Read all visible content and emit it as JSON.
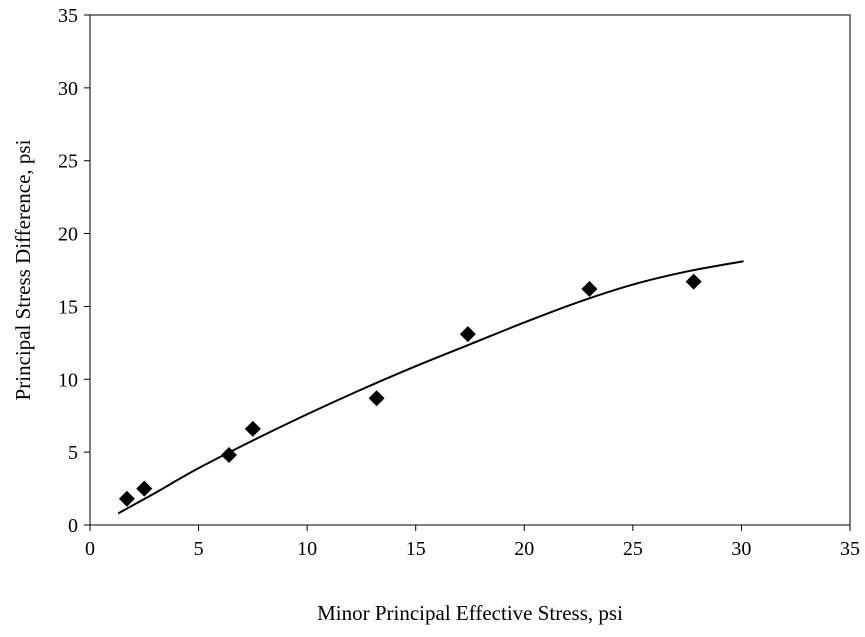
{
  "chart_data": {
    "type": "scatter",
    "title": "",
    "xlabel": "Minor Principal Effective Stress, psi",
    "ylabel": "Principal Stress Difference, psi",
    "xlim": [
      0,
      35
    ],
    "ylim": [
      0,
      35
    ],
    "x_ticks": [
      0,
      5,
      10,
      15,
      20,
      25,
      30,
      35
    ],
    "y_ticks": [
      0,
      5,
      10,
      15,
      20,
      25,
      30,
      35
    ],
    "grid": false,
    "legend": "none",
    "colors": {
      "marker": "#000000",
      "curve": "#000000",
      "axes": "#000000"
    },
    "series": [
      {
        "marker": "diamond",
        "points": [
          {
            "x": 1.7,
            "y": 1.8
          },
          {
            "x": 2.5,
            "y": 2.5
          },
          {
            "x": 6.4,
            "y": 4.8
          },
          {
            "x": 7.5,
            "y": 6.6
          },
          {
            "x": 13.2,
            "y": 8.7
          },
          {
            "x": 17.4,
            "y": 13.1
          },
          {
            "x": 23.0,
            "y": 16.2
          },
          {
            "x": 27.8,
            "y": 16.7
          }
        ]
      }
    ],
    "trendline": {
      "style": "solid",
      "points": [
        {
          "x": 1.3,
          "y": 0.8
        },
        {
          "x": 3.0,
          "y": 2.2
        },
        {
          "x": 5.0,
          "y": 3.9
        },
        {
          "x": 7.5,
          "y": 5.8
        },
        {
          "x": 10.0,
          "y": 7.6
        },
        {
          "x": 12.5,
          "y": 9.3
        },
        {
          "x": 15.0,
          "y": 10.9
        },
        {
          "x": 17.5,
          "y": 12.4
        },
        {
          "x": 20.0,
          "y": 13.9
        },
        {
          "x": 22.5,
          "y": 15.3
        },
        {
          "x": 25.0,
          "y": 16.5
        },
        {
          "x": 27.5,
          "y": 17.4
        },
        {
          "x": 30.1,
          "y": 18.1
        }
      ]
    }
  }
}
